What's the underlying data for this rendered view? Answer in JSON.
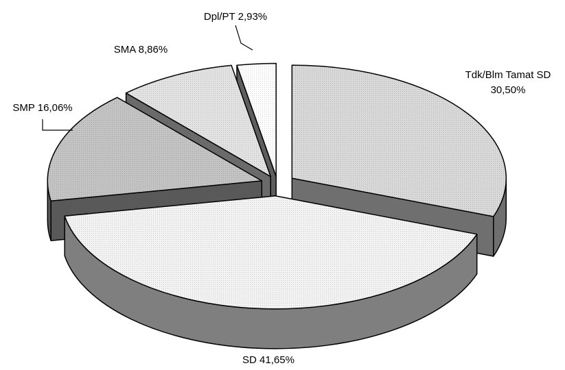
{
  "chart_data": {
    "type": "pie",
    "title": "",
    "slices": [
      {
        "name": "Tdk/Blm Tamat SD",
        "value": 30.5,
        "label_lines": [
          "Tdk/Blm Tamat SD",
          "30,50%"
        ],
        "top_fill": "#d9d9d9",
        "side_fill": "#6f6f6f"
      },
      {
        "name": "SD",
        "value": 41.65,
        "label_lines": [
          "SD 41,65%"
        ],
        "top_fill": "#f3f3f3",
        "side_fill": "#7f7f7f"
      },
      {
        "name": "SMP",
        "value": 16.06,
        "label_lines": [
          "SMP 16,06%"
        ],
        "top_fill": "#c4c4c4",
        "side_fill": "#595959"
      },
      {
        "name": "SMA",
        "value": 8.86,
        "label_lines": [
          "SMA 8,86%"
        ],
        "top_fill": "#e3e3e3",
        "side_fill": "#6a6a6a"
      },
      {
        "name": "Dpl/PT",
        "value": 2.93,
        "label_lines": [
          "Dpl/PT 2,93%"
        ],
        "top_fill": "#ffffff",
        "side_fill": "#5e5e5e"
      }
    ],
    "style": "3d-exploded",
    "legend": "none"
  }
}
